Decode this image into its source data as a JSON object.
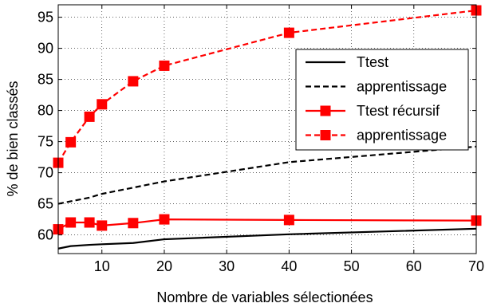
{
  "chart_data": {
    "type": "line",
    "xlabel": "Nombre de variables sélectionées",
    "ylabel": "% de bien classés",
    "xlim": [
      3,
      70
    ],
    "ylim": [
      57,
      97
    ],
    "xticks": [
      10,
      20,
      30,
      40,
      50,
      60,
      70
    ],
    "yticks": [
      60,
      65,
      70,
      75,
      80,
      85,
      90,
      95
    ],
    "grid": true,
    "legend_position": "right",
    "series": [
      {
        "name": "Ttest",
        "color": "#000000",
        "line_style": "solid",
        "marker": "none",
        "x": [
          3,
          5,
          8,
          10,
          15,
          20,
          40,
          70
        ],
        "y": [
          57.8,
          58.2,
          58.4,
          58.5,
          58.7,
          59.3,
          60.1,
          61.0
        ]
      },
      {
        "name": "apprentissage",
        "color": "#000000",
        "line_style": "dashed",
        "marker": "none",
        "x": [
          3,
          5,
          8,
          10,
          15,
          20,
          40,
          70
        ],
        "y": [
          65.0,
          65.4,
          66.0,
          66.6,
          67.6,
          68.6,
          71.7,
          74.2
        ]
      },
      {
        "name": "Ttest récursif",
        "color": "#ff0000",
        "line_style": "solid",
        "marker": "square",
        "x": [
          3,
          5,
          8,
          10,
          15,
          20,
          40,
          70
        ],
        "y": [
          60.9,
          62.0,
          62.0,
          61.5,
          61.9,
          62.5,
          62.4,
          62.3
        ]
      },
      {
        "name": "apprentissage",
        "color": "#ff0000",
        "line_style": "dashed",
        "marker": "square",
        "x": [
          3,
          5,
          8,
          10,
          15,
          20,
          40,
          70
        ],
        "y": [
          71.6,
          74.9,
          79.0,
          81.0,
          84.7,
          87.2,
          92.5,
          96.1
        ]
      }
    ]
  }
}
